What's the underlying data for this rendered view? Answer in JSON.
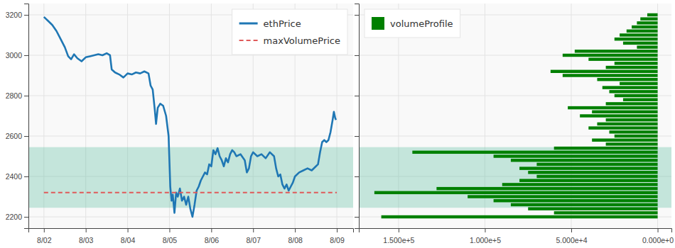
{
  "chart_data": [
    {
      "type": "line",
      "x": [
        2.0,
        2.1,
        2.2,
        2.3,
        2.4,
        2.5,
        2.58,
        2.65,
        2.72,
        2.8,
        2.9,
        3.0,
        3.1,
        3.2,
        3.3,
        3.4,
        3.5,
        3.58,
        3.62,
        3.7,
        3.8,
        3.9,
        4.0,
        4.1,
        4.2,
        4.3,
        4.4,
        4.5,
        4.55,
        4.6,
        4.65,
        4.68,
        4.72,
        4.78,
        4.85,
        4.92,
        4.98,
        5.02,
        5.05,
        5.08,
        5.12,
        5.16,
        5.2,
        5.25,
        5.3,
        5.35,
        5.4,
        5.45,
        5.5,
        5.55,
        5.6,
        5.65,
        5.7,
        5.75,
        5.8,
        5.85,
        5.9,
        5.95,
        6.0,
        6.05,
        6.1,
        6.15,
        6.2,
        6.25,
        6.3,
        6.35,
        6.4,
        6.45,
        6.5,
        6.55,
        6.6,
        6.7,
        6.8,
        6.85,
        6.9,
        6.95,
        7.0,
        7.1,
        7.2,
        7.3,
        7.4,
        7.5,
        7.55,
        7.6,
        7.65,
        7.7,
        7.75,
        7.8,
        7.85,
        7.9,
        7.95,
        8.0,
        8.1,
        8.2,
        8.3,
        8.4,
        8.5,
        8.55,
        8.6,
        8.65,
        8.7,
        8.75,
        8.8,
        8.85,
        8.9,
        8.93,
        8.96,
        8.98
      ],
      "series": [
        {
          "name": "ethPrice",
          "color": "#1f77b4",
          "line_style": "solid",
          "values": [
            3190,
            3170,
            3150,
            3120,
            3080,
            3040,
            2995,
            2980,
            3005,
            2985,
            2970,
            2990,
            2995,
            3000,
            3005,
            3000,
            3010,
            3000,
            2930,
            2915,
            2905,
            2890,
            2910,
            2905,
            2915,
            2910,
            2920,
            2910,
            2850,
            2830,
            2730,
            2660,
            2740,
            2760,
            2750,
            2700,
            2600,
            2350,
            2280,
            2310,
            2220,
            2320,
            2300,
            2340,
            2280,
            2300,
            2260,
            2300,
            2240,
            2200,
            2260,
            2330,
            2350,
            2380,
            2400,
            2420,
            2410,
            2460,
            2450,
            2530,
            2510,
            2540,
            2500,
            2480,
            2450,
            2490,
            2470,
            2510,
            2530,
            2520,
            2500,
            2510,
            2480,
            2420,
            2440,
            2500,
            2520,
            2500,
            2510,
            2490,
            2520,
            2500,
            2440,
            2400,
            2410,
            2360,
            2340,
            2360,
            2330,
            2350,
            2370,
            2400,
            2420,
            2430,
            2440,
            2430,
            2450,
            2460,
            2520,
            2570,
            2580,
            2570,
            2580,
            2620,
            2680,
            2720,
            2690,
            2680
          ]
        },
        {
          "name": "maxVolumePrice",
          "color": "#e05a5a",
          "line_style": "dashed",
          "x": [
            2.0,
            9.0
          ],
          "values": [
            2320,
            2320
          ]
        }
      ],
      "value_area": [
        2245,
        2545
      ],
      "xlim": [
        1.63,
        9.39
      ],
      "xticks": [
        {
          "value": 2,
          "label": "8/02"
        },
        {
          "value": 3,
          "label": "8/03"
        },
        {
          "value": 4,
          "label": "8/04"
        },
        {
          "value": 5,
          "label": "8/05"
        },
        {
          "value": 6,
          "label": "8/06"
        },
        {
          "value": 7,
          "label": "8/07"
        },
        {
          "value": 8,
          "label": "8/08"
        },
        {
          "value": 9,
          "label": "8/09"
        }
      ],
      "ylim": [
        2144,
        3256
      ],
      "yticks": [
        2200,
        2400,
        2600,
        2800,
        3000,
        3200
      ],
      "grid": true,
      "legend": "upper right"
    },
    {
      "type": "bar",
      "orientation": "horizontal",
      "y": [
        2200,
        2220,
        2240,
        2260,
        2280,
        2300,
        2320,
        2340,
        2360,
        2380,
        2400,
        2420,
        2440,
        2460,
        2480,
        2500,
        2520,
        2540,
        2560,
        2580,
        2600,
        2620,
        2640,
        2660,
        2680,
        2700,
        2720,
        2740,
        2760,
        2780,
        2800,
        2820,
        2840,
        2860,
        2880,
        2900,
        2920,
        2940,
        2960,
        2980,
        3000,
        3020,
        3040,
        3060,
        3080,
        3100,
        3120,
        3140,
        3160,
        3180,
        3200
      ],
      "series": [
        {
          "name": "volumeProfile",
          "color": "#008000",
          "values": [
            160000,
            60000,
            75000,
            85000,
            95000,
            110000,
            164000,
            128000,
            90000,
            80000,
            70000,
            75000,
            80000,
            70000,
            85000,
            95000,
            142000,
            60000,
            30000,
            38000,
            25000,
            28000,
            40000,
            35000,
            30000,
            45000,
            38000,
            52000,
            30000,
            20000,
            25000,
            28000,
            32000,
            22000,
            35000,
            55000,
            62000,
            30000,
            25000,
            40000,
            55000,
            48000,
            12000,
            20000,
            25000,
            22000,
            18000,
            15000,
            12000,
            10000,
            6000
          ]
        }
      ],
      "value_area": [
        2245,
        2545
      ],
      "xlim": [
        173000,
        -8000
      ],
      "xticks": [
        {
          "value": 150000,
          "label": "1.500e+5"
        },
        {
          "value": 100000,
          "label": "1.000e+5"
        },
        {
          "value": 50000,
          "label": "5.000e+4"
        },
        {
          "value": 0,
          "label": "0.000e+0"
        }
      ],
      "ylim": [
        2144,
        3256
      ],
      "yticks": [
        2200,
        2400,
        2600,
        2800,
        3000,
        3200
      ],
      "grid": true,
      "tick_labels": "x",
      "legend": "upper left"
    }
  ]
}
